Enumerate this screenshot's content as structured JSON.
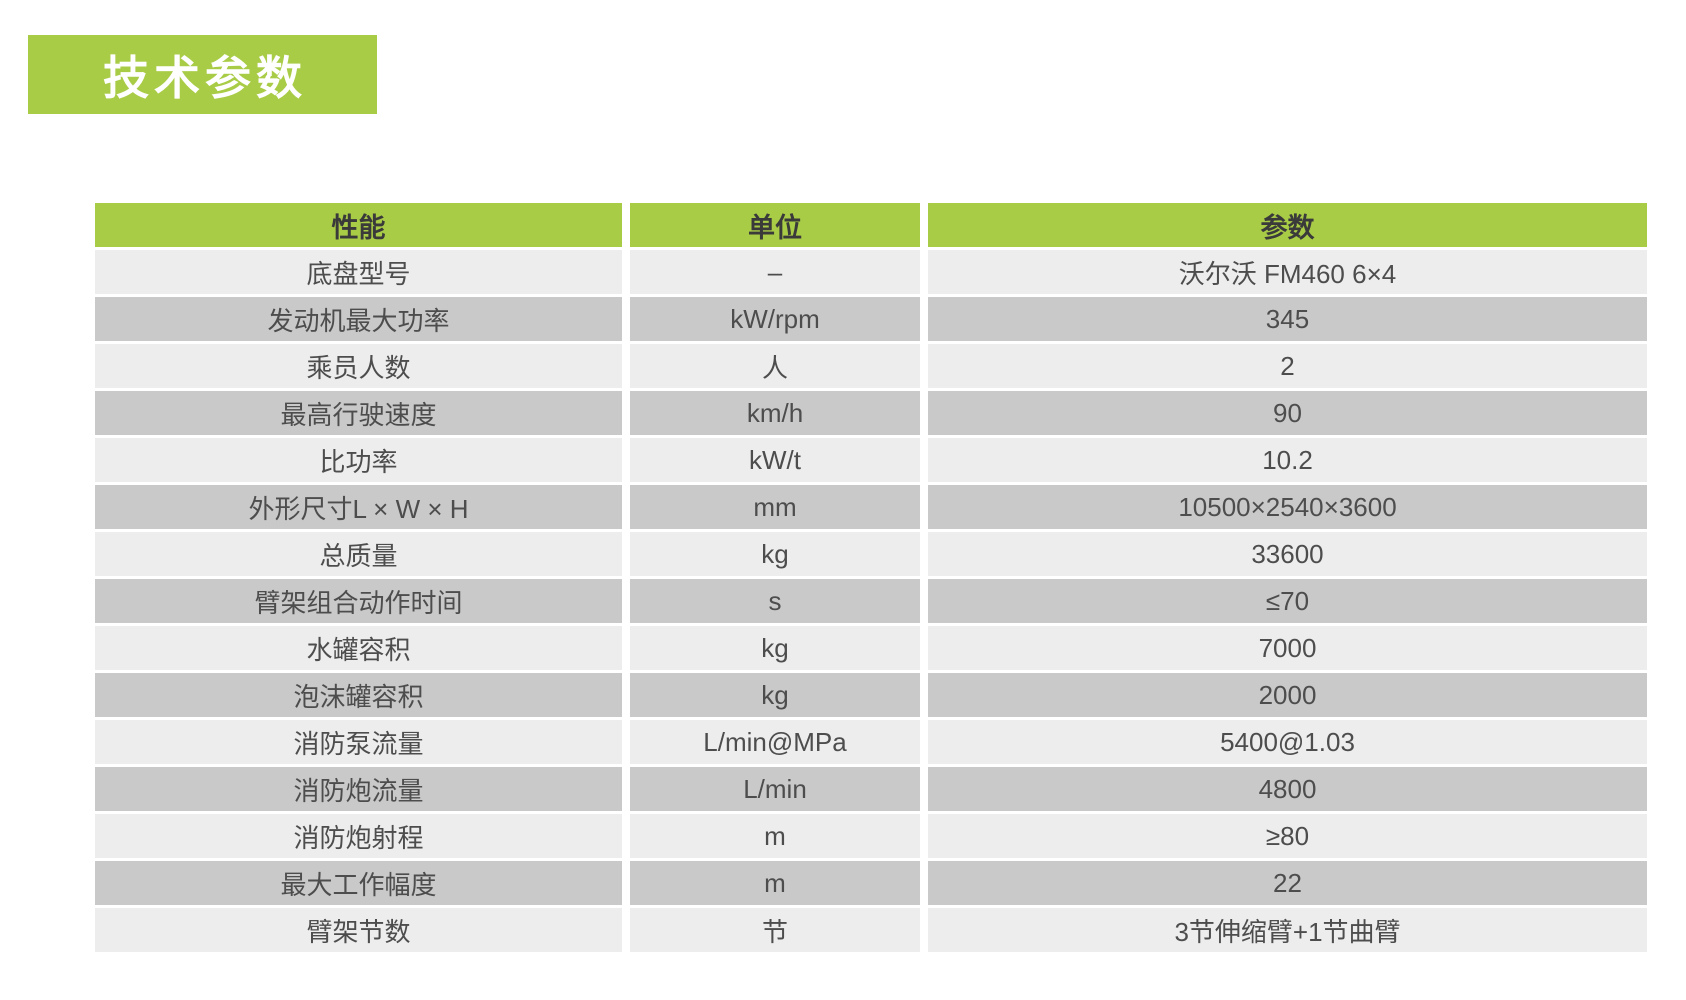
{
  "title": "技术参数",
  "colors": {
    "accent_green": "#a9cc47",
    "row_light": "#ededed",
    "row_dark": "#c9c9c9",
    "header_text": "#3a3a3a",
    "body_text": "#4d4d4d",
    "title_text": "#ffffff",
    "page_bg": "#ffffff"
  },
  "table": {
    "headers": [
      "性能",
      "单位",
      "参数"
    ],
    "rows": [
      [
        "底盘型号",
        "–",
        "沃尔沃 FM460 6×4"
      ],
      [
        "发动机最大功率",
        "kW/rpm",
        "345"
      ],
      [
        "乘员人数",
        "人",
        "2"
      ],
      [
        "最高行驶速度",
        "km/h",
        "90"
      ],
      [
        "比功率",
        "kW/t",
        "10.2"
      ],
      [
        "外形尺寸L × W × H",
        "mm",
        "10500×2540×3600"
      ],
      [
        "总质量",
        "kg",
        "33600"
      ],
      [
        "臂架组合动作时间",
        "s",
        "≤70"
      ],
      [
        "水罐容积",
        "kg",
        "7000"
      ],
      [
        "泡沫罐容积",
        "kg",
        "2000"
      ],
      [
        "消防泵流量",
        "L/min@MPa",
        "5400@1.03"
      ],
      [
        "消防炮流量",
        "L/min",
        "4800"
      ],
      [
        "消防炮射程",
        "m",
        "≥80"
      ],
      [
        "最大工作幅度",
        "m",
        "22"
      ],
      [
        "臂架节数",
        "节",
        "3节伸缩臂+1节曲臂"
      ]
    ]
  }
}
